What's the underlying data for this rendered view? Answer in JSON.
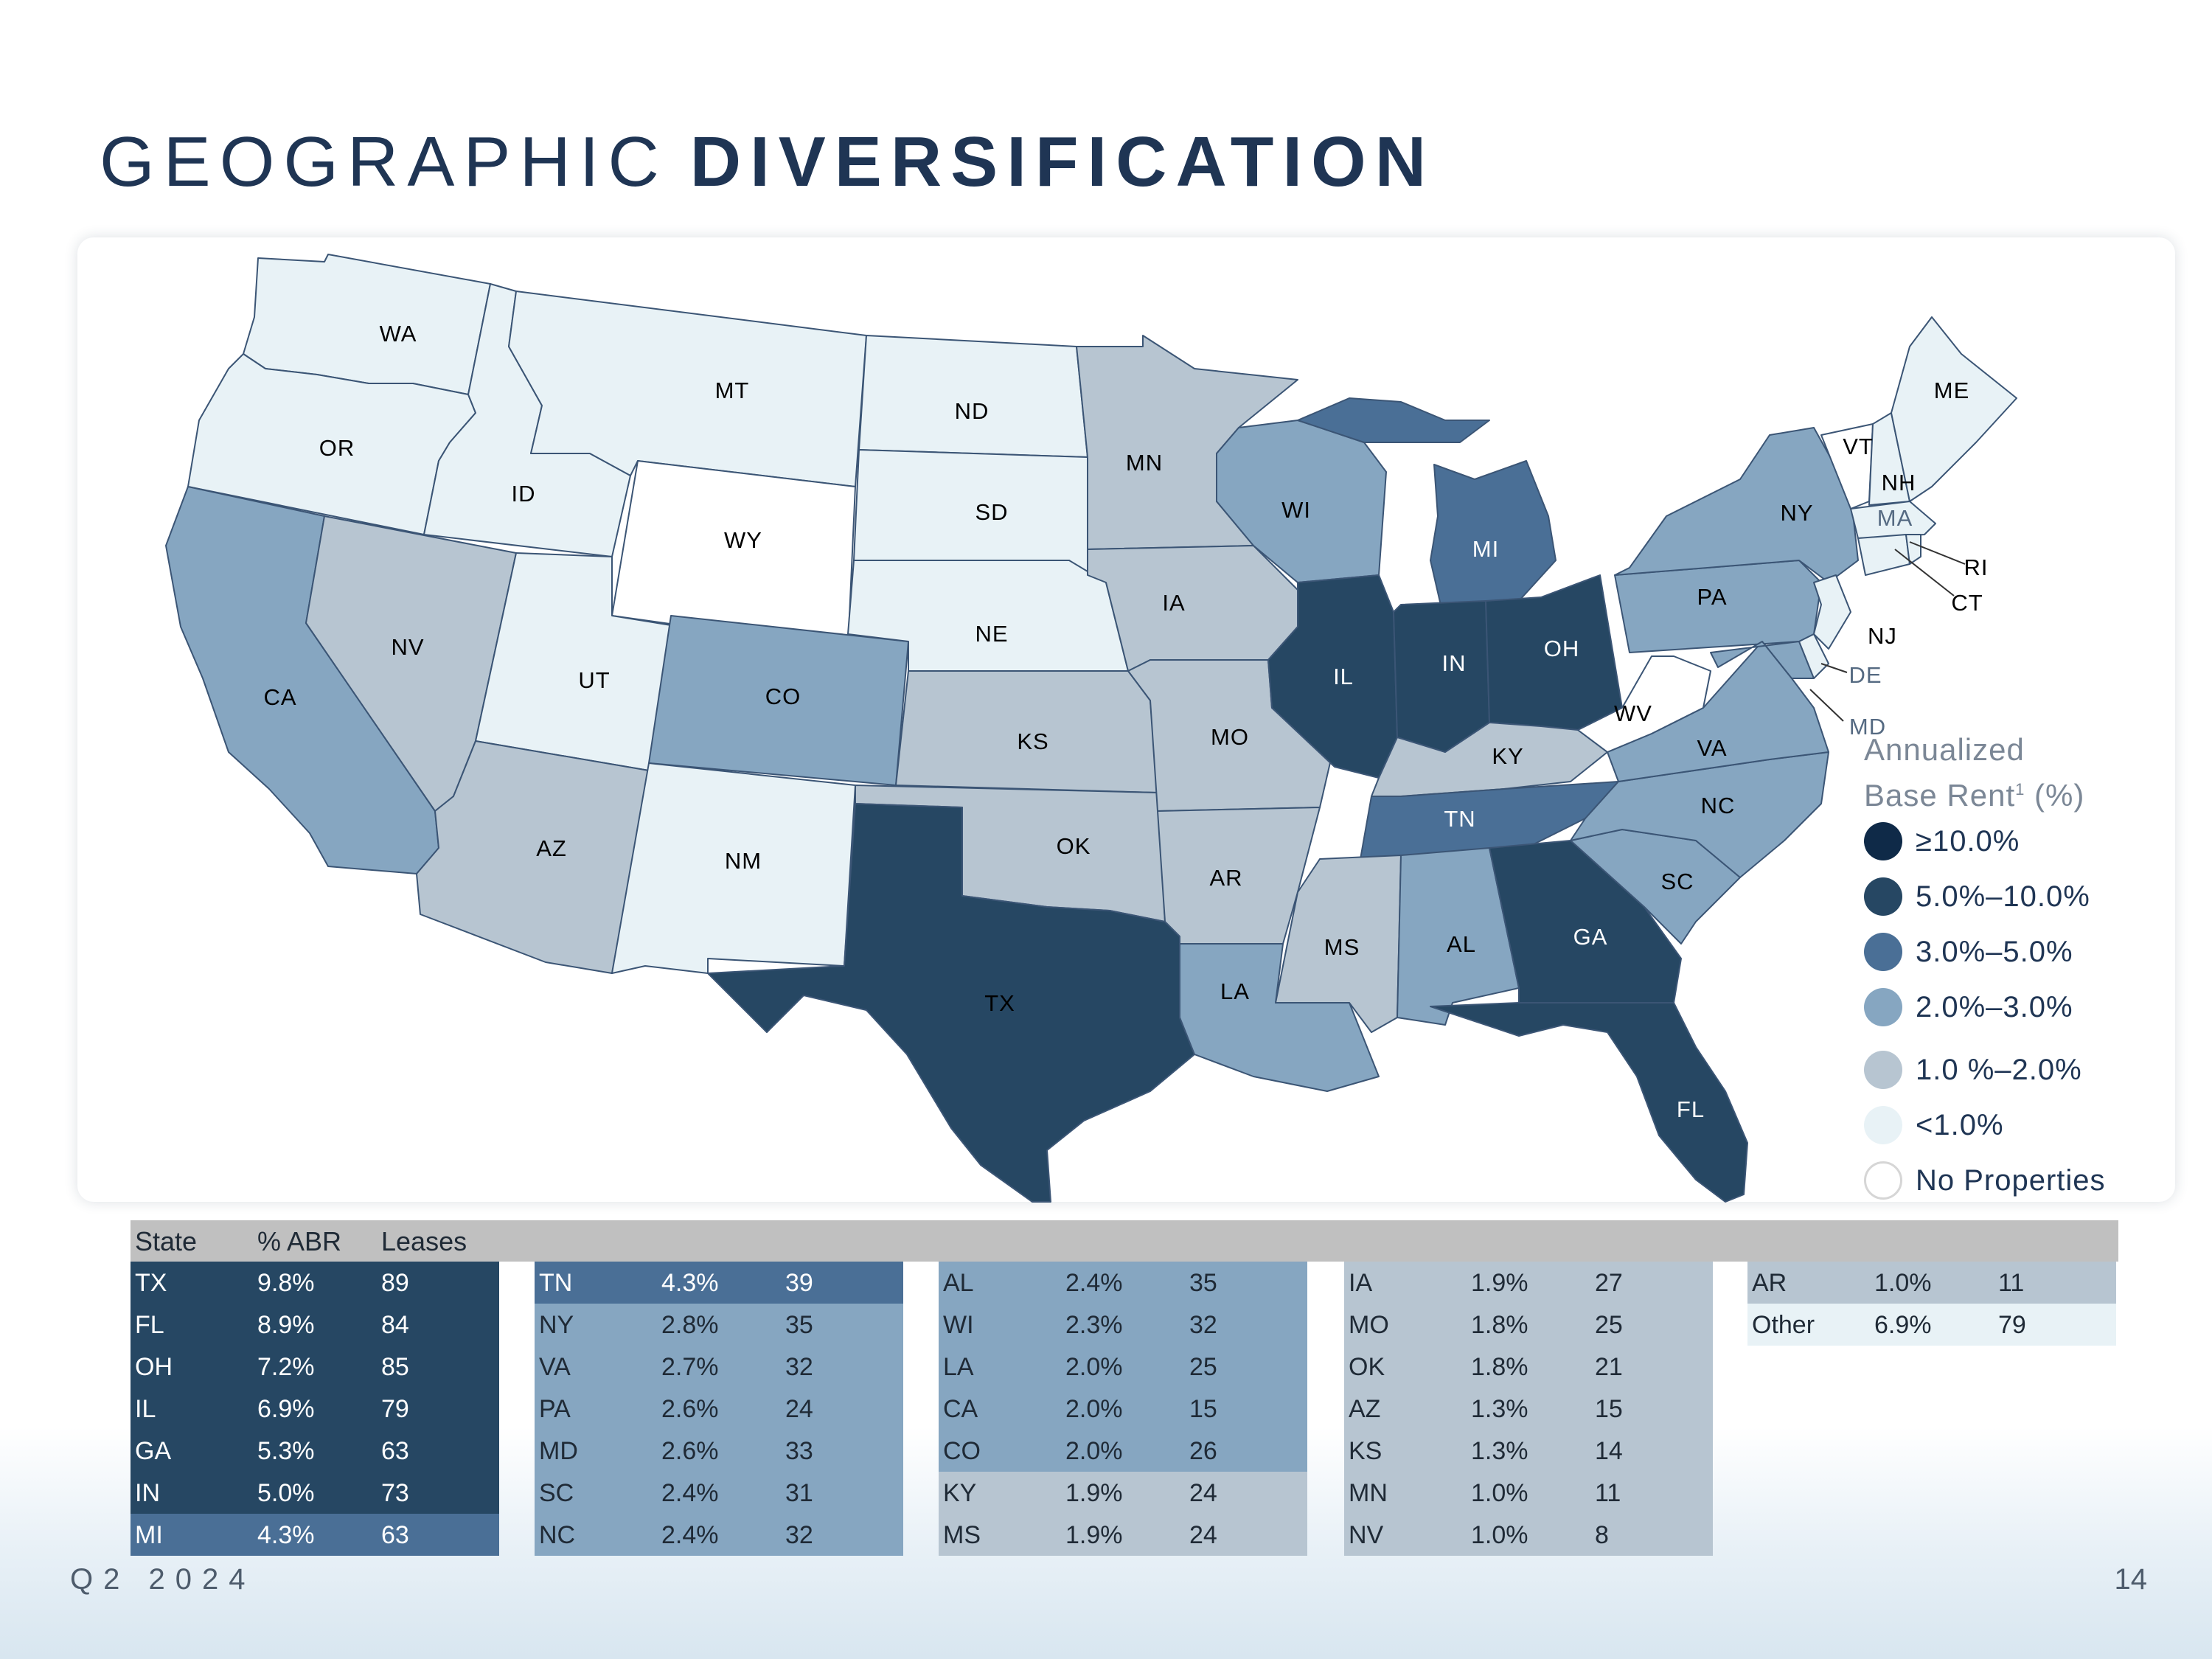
{
  "title": {
    "light": "GEOGRAPHIC",
    "bold": "DIVERSIFICATION"
  },
  "colors": {
    "ge10": "#0f2a48",
    "c5_10": "#264763",
    "c3_5": "#4a6f96",
    "c2_3": "#86a6c1",
    "c1_2": "#b7c5d1",
    "lt1": "#e8f2f6",
    "none": "#ffffff"
  },
  "legend": {
    "title_line1": "Annualized",
    "title_line2": "Base Rent",
    "title_sup": "1",
    "title_suffix": " (%)",
    "items": [
      {
        "label": "≥10.0%",
        "color": "#0f2a48"
      },
      {
        "label": "5.0%–10.0%",
        "color": "#264763"
      },
      {
        "label": "3.0%–5.0%",
        "color": "#4a6f96"
      },
      {
        "label": "2.0%–3.0%",
        "color": "#86a6c1"
      },
      {
        "label": "1.0 %–2.0%",
        "color": "#b7c5d1"
      },
      {
        "label": "<1.0%",
        "color": "#e8f2f6"
      },
      {
        "label": "No Properties",
        "color": "#ffffff"
      }
    ]
  },
  "map_labels": [
    "WA",
    "OR",
    "CA",
    "ID",
    "NV",
    "MT",
    "WY",
    "UT",
    "AZ",
    "CO",
    "NM",
    "ND",
    "SD",
    "NE",
    "KS",
    "OK",
    "TX",
    "MN",
    "IA",
    "MO",
    "AR",
    "LA",
    "WI",
    "IL",
    "MI",
    "IN",
    "OH",
    "KY",
    "TN",
    "MS",
    "AL",
    "GA",
    "FL",
    "SC",
    "NC",
    "VA",
    "WV",
    "PA",
    "NY",
    "VT",
    "NH",
    "ME",
    "MA",
    "RI",
    "CT",
    "NJ",
    "DE",
    "MD"
  ],
  "table": {
    "headers": {
      "state": "State",
      "abr": "% ABR",
      "leases": "Leases"
    },
    "columns": [
      [
        {
          "state": "TX",
          "abr": "9.8%",
          "leases": "89",
          "tier": "c5_10"
        },
        {
          "state": "FL",
          "abr": "8.9%",
          "leases": "84",
          "tier": "c5_10"
        },
        {
          "state": "OH",
          "abr": "7.2%",
          "leases": "85",
          "tier": "c5_10"
        },
        {
          "state": "IL",
          "abr": "6.9%",
          "leases": "79",
          "tier": "c5_10"
        },
        {
          "state": "GA",
          "abr": "5.3%",
          "leases": "63",
          "tier": "c5_10"
        },
        {
          "state": "IN",
          "abr": "5.0%",
          "leases": "73",
          "tier": "c5_10"
        },
        {
          "state": "MI",
          "abr": "4.3%",
          "leases": "63",
          "tier": "c3_5"
        }
      ],
      [
        {
          "state": "TN",
          "abr": "4.3%",
          "leases": "39",
          "tier": "c3_5"
        },
        {
          "state": "NY",
          "abr": "2.8%",
          "leases": "35",
          "tier": "c2_3"
        },
        {
          "state": "VA",
          "abr": "2.7%",
          "leases": "32",
          "tier": "c2_3"
        },
        {
          "state": "PA",
          "abr": "2.6%",
          "leases": "24",
          "tier": "c2_3"
        },
        {
          "state": "MD",
          "abr": "2.6%",
          "leases": "33",
          "tier": "c2_3"
        },
        {
          "state": "SC",
          "abr": "2.4%",
          "leases": "31",
          "tier": "c2_3"
        },
        {
          "state": "NC",
          "abr": "2.4%",
          "leases": "32",
          "tier": "c2_3"
        }
      ],
      [
        {
          "state": "AL",
          "abr": "2.4%",
          "leases": "35",
          "tier": "c2_3"
        },
        {
          "state": "WI",
          "abr": "2.3%",
          "leases": "32",
          "tier": "c2_3"
        },
        {
          "state": "LA",
          "abr": "2.0%",
          "leases": "25",
          "tier": "c2_3"
        },
        {
          "state": "CA",
          "abr": "2.0%",
          "leases": "15",
          "tier": "c2_3"
        },
        {
          "state": "CO",
          "abr": "2.0%",
          "leases": "26",
          "tier": "c2_3"
        },
        {
          "state": "KY",
          "abr": "1.9%",
          "leases": "24",
          "tier": "c1_2"
        },
        {
          "state": "MS",
          "abr": "1.9%",
          "leases": "24",
          "tier": "c1_2"
        }
      ],
      [
        {
          "state": "IA",
          "abr": "1.9%",
          "leases": "27",
          "tier": "c1_2"
        },
        {
          "state": "MO",
          "abr": "1.8%",
          "leases": "25",
          "tier": "c1_2"
        },
        {
          "state": "OK",
          "abr": "1.8%",
          "leases": "21",
          "tier": "c1_2"
        },
        {
          "state": "AZ",
          "abr": "1.3%",
          "leases": "15",
          "tier": "c1_2"
        },
        {
          "state": "KS",
          "abr": "1.3%",
          "leases": "14",
          "tier": "c1_2"
        },
        {
          "state": "MN",
          "abr": "1.0%",
          "leases": "11",
          "tier": "c1_2"
        },
        {
          "state": "NV",
          "abr": "1.0%",
          "leases": "8",
          "tier": "c1_2"
        }
      ],
      [
        {
          "state": "AR",
          "abr": "1.0%",
          "leases": "11",
          "tier": "c1_2"
        },
        {
          "state": "Other",
          "abr": "6.9%",
          "leases": "79",
          "tier": "lt1"
        }
      ]
    ]
  },
  "footer": {
    "period": "Q2 2024",
    "page": "14"
  }
}
